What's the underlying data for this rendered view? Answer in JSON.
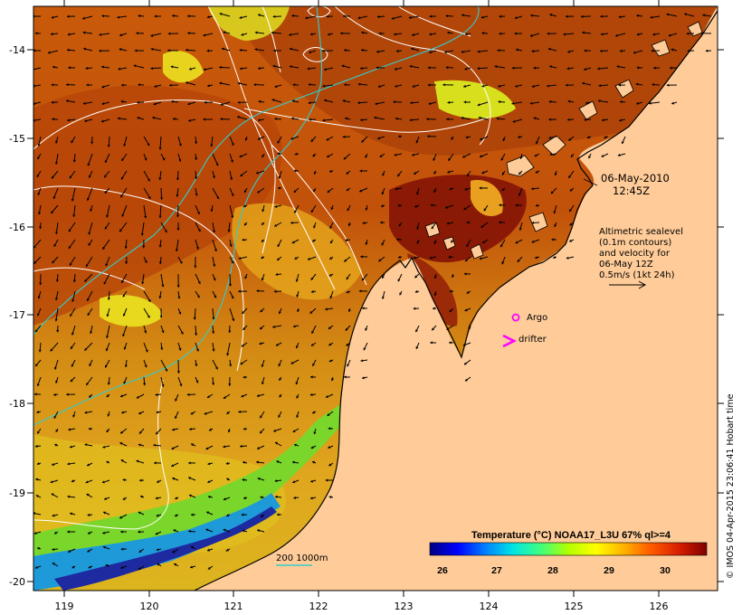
{
  "map": {
    "timestamp_date": "06-May-2010",
    "timestamp_time": "12:45Z",
    "legend_block": {
      "line1": "Altimetric sealevel",
      "line2": "(0.1m contours)",
      "line3": "and velocity for",
      "line4": "06-May 12Z",
      "line5": "0.5m/s (1kt 24h)"
    },
    "argo_label": "Argo",
    "drifter_label": "drifter",
    "isobath_label": "200  1000m",
    "credit": "© IMOS 04-Apr-2015 23:06:41 Hobart time",
    "x_ticks": [
      "119",
      "120",
      "121",
      "122",
      "123",
      "124",
      "125",
      "126"
    ],
    "y_ticks": [
      "-14",
      "-15",
      "-16",
      "-17",
      "-18",
      "-19",
      "-20"
    ],
    "colorbar": {
      "title": "Temperature (°C) NOAA17_L3U 67% ql>=4",
      "tick_labels": [
        "26",
        "27",
        "28",
        "29",
        "30"
      ],
      "colors": [
        "#00007f",
        "#0000ff",
        "#007fff",
        "#00e5e5",
        "#3fff7f",
        "#b2ff00",
        "#ffff00",
        "#ffb200",
        "#ff5900",
        "#d81e00",
        "#7f0000"
      ]
    },
    "colors": {
      "land": "#ffcc99",
      "coast": "#000000",
      "argo_marker": "#ff00ff",
      "drifter_marker": "#ff00ff",
      "sealevel_contour": "#ffffff",
      "isobath_contour": "#33cccc",
      "arrow": "#000000"
    }
  }
}
